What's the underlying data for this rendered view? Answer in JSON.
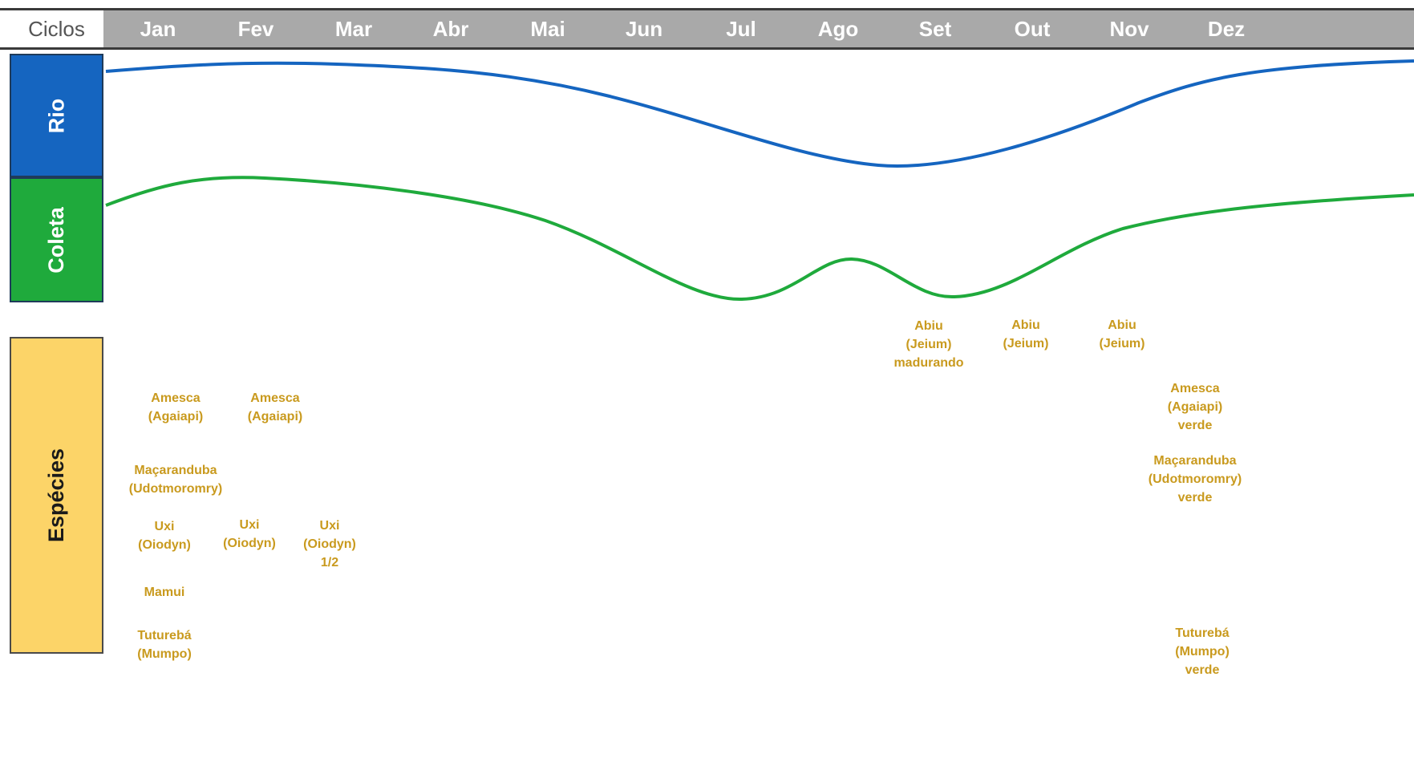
{
  "header": {
    "ciclos_label": "Ciclos",
    "months": [
      "Jan",
      "Fev",
      "Mar",
      "Abr",
      "Mai",
      "Jun",
      "Jul",
      "Ago",
      "Set",
      "Out",
      "Nov",
      "Dez"
    ]
  },
  "rows": {
    "rio_label": "Rio",
    "coleta_label": "Coleta",
    "especies_label": "Espécies"
  },
  "colors": {
    "rio": "#1565c0",
    "coleta": "#1faa3c",
    "especies": "#fcd468",
    "species_text": "#c99a1e"
  },
  "species_items": [
    {
      "month": "Jan",
      "lines": [
        "Amesca",
        "(Agaiapi)"
      ]
    },
    {
      "month": "Fev",
      "lines": [
        "Amesca",
        "(Agaiapi)"
      ]
    },
    {
      "month": "Jan",
      "lines": [
        "Maçaranduba",
        "(Udotmoromry)"
      ]
    },
    {
      "month": "Jan",
      "lines": [
        "Uxi",
        "(Oiodyn)"
      ]
    },
    {
      "month": "Fev",
      "lines": [
        "Uxi",
        "(Oiodyn)"
      ]
    },
    {
      "month": "Mar",
      "lines": [
        "Uxi",
        "(Oiodyn)",
        "1/2"
      ]
    },
    {
      "month": "Jan",
      "lines": [
        "Mamui"
      ]
    },
    {
      "month": "Jan",
      "lines": [
        "Tuturebá",
        "(Mumpo)"
      ]
    },
    {
      "month": "Set",
      "lines": [
        "Abiu",
        "(Jeium)",
        "madurando"
      ]
    },
    {
      "month": "Out",
      "lines": [
        "Abiu",
        "(Jeium)"
      ]
    },
    {
      "month": "Nov",
      "lines": [
        "Abiu",
        "(Jeium)"
      ]
    },
    {
      "month": "Dez",
      "lines": [
        "Amesca",
        "(Agaiapi)",
        "verde"
      ]
    },
    {
      "month": "Dez",
      "lines": [
        "Maçaranduba",
        "(Udotmoromry)",
        "verde"
      ]
    },
    {
      "month": "Dez",
      "lines": [
        "Tuturebá",
        "(Mumpo)",
        "verde"
      ]
    }
  ]
}
